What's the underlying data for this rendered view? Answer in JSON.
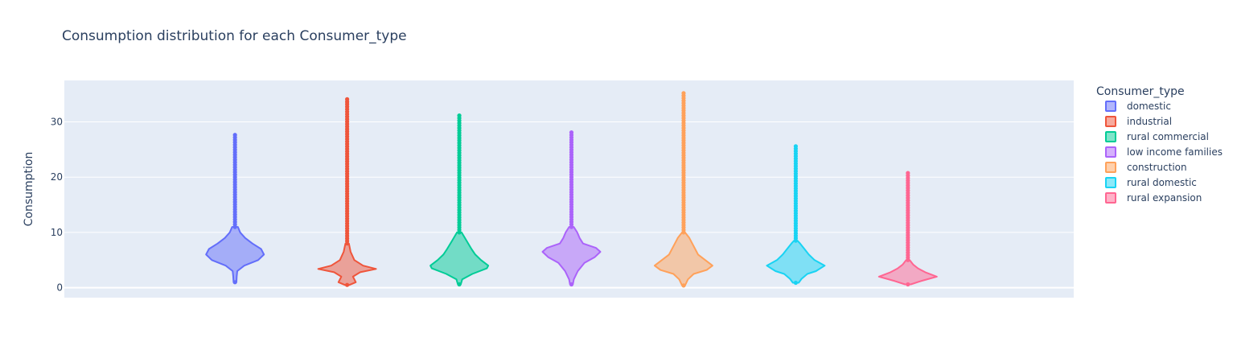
{
  "chart_data": {
    "type": "violin",
    "title": "Consumption distribution for each Consumer_type",
    "xlabel": "",
    "ylabel": "Consumption",
    "ylim": [
      -1.8,
      37.5
    ],
    "yticks": [
      0,
      10,
      20,
      30
    ],
    "grid": true,
    "legend_title": "Consumer_type",
    "legend_position": "right",
    "series": [
      {
        "name": "domestic",
        "color": "#636efa",
        "min": 1.0,
        "max": 28.0,
        "outlier_from": 11.0,
        "width_profile": [
          [
            1.0,
            0.05
          ],
          [
            2.0,
            0.06
          ],
          [
            3.0,
            0.08
          ],
          [
            4.0,
            0.32
          ],
          [
            5.0,
            0.8
          ],
          [
            6.0,
            1.0
          ],
          [
            7.0,
            0.9
          ],
          [
            8.0,
            0.6
          ],
          [
            9.0,
            0.35
          ],
          [
            10.0,
            0.18
          ],
          [
            11.0,
            0.1
          ]
        ]
      },
      {
        "name": "industrial",
        "color": "#ef553b",
        "min": 0.5,
        "max": 34.5,
        "outlier_from": 8.0,
        "width_profile": [
          [
            0.5,
            0.08
          ],
          [
            1.0,
            0.3
          ],
          [
            2.0,
            0.2
          ],
          [
            2.8,
            0.45
          ],
          [
            3.4,
            1.0
          ],
          [
            4.0,
            0.55
          ],
          [
            5.0,
            0.25
          ],
          [
            6.5,
            0.12
          ],
          [
            8.0,
            0.06
          ]
        ]
      },
      {
        "name": "rural commercial",
        "color": "#00cc96",
        "min": 0.6,
        "max": 31.5,
        "outlier_from": 10.0,
        "width_profile": [
          [
            0.6,
            0.05
          ],
          [
            1.5,
            0.1
          ],
          [
            2.5,
            0.45
          ],
          [
            3.5,
            0.95
          ],
          [
            4.0,
            1.0
          ],
          [
            5.0,
            0.75
          ],
          [
            6.0,
            0.55
          ],
          [
            7.0,
            0.42
          ],
          [
            8.5,
            0.25
          ],
          [
            10.0,
            0.08
          ]
        ]
      },
      {
        "name": "low income families",
        "color": "#ab63fa",
        "min": 0.6,
        "max": 28.5,
        "outlier_from": 11.0,
        "width_profile": [
          [
            0.6,
            0.05
          ],
          [
            1.5,
            0.08
          ],
          [
            3.0,
            0.22
          ],
          [
            4.5,
            0.45
          ],
          [
            5.5,
            0.8
          ],
          [
            6.5,
            1.0
          ],
          [
            7.2,
            0.85
          ],
          [
            8.0,
            0.4
          ],
          [
            9.0,
            0.28
          ],
          [
            10.0,
            0.2
          ],
          [
            11.0,
            0.08
          ]
        ]
      },
      {
        "name": "construction",
        "color": "#FFA15A",
        "min": 0.4,
        "max": 35.5,
        "outlier_from": 10.0,
        "width_profile": [
          [
            0.4,
            0.05
          ],
          [
            1.5,
            0.15
          ],
          [
            2.5,
            0.35
          ],
          [
            3.2,
            0.8
          ],
          [
            4.0,
            1.0
          ],
          [
            5.0,
            0.75
          ],
          [
            6.0,
            0.5
          ],
          [
            7.0,
            0.4
          ],
          [
            8.0,
            0.3
          ],
          [
            9.0,
            0.2
          ],
          [
            10.0,
            0.05
          ]
        ]
      },
      {
        "name": "rural domestic",
        "color": "#19d3f3",
        "min": 0.9,
        "max": 26.0,
        "outlier_from": 8.5,
        "width_profile": [
          [
            0.9,
            0.1
          ],
          [
            1.6,
            0.2
          ],
          [
            2.5,
            0.4
          ],
          [
            3.0,
            0.7
          ],
          [
            4.0,
            1.0
          ],
          [
            5.0,
            0.65
          ],
          [
            6.0,
            0.45
          ],
          [
            7.0,
            0.3
          ],
          [
            8.0,
            0.15
          ],
          [
            8.5,
            0.06
          ]
        ]
      },
      {
        "name": "rural expansion",
        "color": "#FF6692",
        "min": 0.6,
        "max": 21.0,
        "outlier_from": 5.0,
        "width_profile": [
          [
            0.6,
            0.1
          ],
          [
            1.2,
            0.45
          ],
          [
            2.0,
            1.0
          ],
          [
            2.8,
            0.6
          ],
          [
            3.5,
            0.35
          ],
          [
            4.2,
            0.18
          ],
          [
            5.0,
            0.06
          ]
        ]
      }
    ]
  }
}
